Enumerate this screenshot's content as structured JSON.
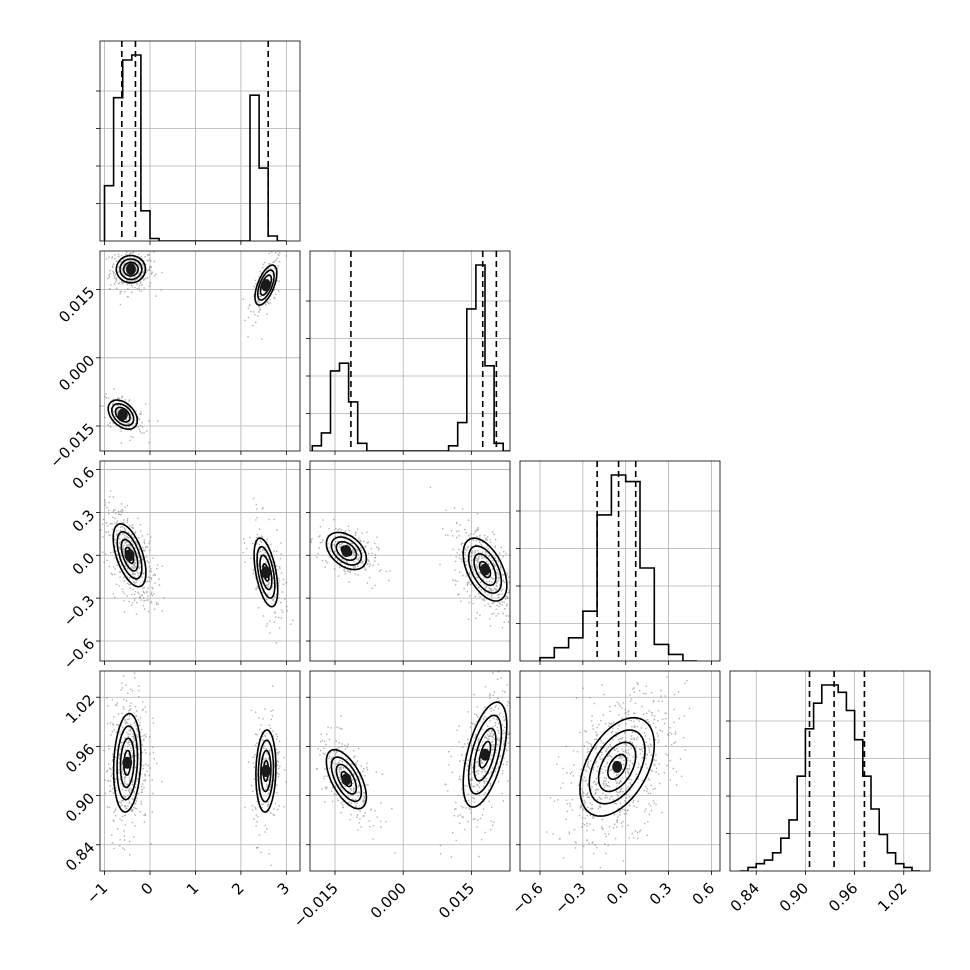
{
  "chart_data": {
    "type": "corner",
    "title": "",
    "parameters": [
      {
        "label": "",
        "range": [
          -1.1,
          3.3
        ],
        "ticks": [
          -1,
          0,
          1,
          2,
          3
        ],
        "tick_labels": [
          "−1",
          "0",
          "1",
          "2",
          "3"
        ],
        "quantiles": [
          -0.62,
          -0.32,
          2.6
        ],
        "histogram": {
          "bin_edges": [
            -1.0,
            -0.8,
            -0.6,
            -0.4,
            -0.2,
            0.0,
            0.2,
            2.2,
            2.4,
            2.6,
            2.8,
            3.0
          ],
          "counts": [
            0.22,
            0.57,
            0.72,
            0.74,
            0.12,
            0.01,
            0.0,
            0.58,
            0.29,
            0.02,
            0.0
          ]
        }
      },
      {
        "label": "",
        "range": [
          -0.0205,
          0.0235
        ],
        "ticks": [
          -0.015,
          0.0,
          0.015
        ],
        "tick_labels": [
          "−0.015",
          "0.000",
          "0.015"
        ],
        "quantiles": [
          -0.0115,
          0.0175,
          0.0205
        ],
        "histogram": {
          "bin_edges": [
            -0.02,
            -0.018,
            -0.016,
            -0.014,
            -0.012,
            -0.01,
            -0.008,
            -0.006,
            0.01,
            0.012,
            0.014,
            0.016,
            0.018,
            0.02,
            0.022,
            0.024
          ],
          "counts": [
            0.02,
            0.07,
            0.31,
            0.34,
            0.19,
            0.03,
            0.0,
            0.0,
            0.02,
            0.11,
            0.55,
            0.72,
            0.33,
            0.03,
            0.0
          ]
        }
      },
      {
        "label": "",
        "range": [
          -0.74,
          0.66
        ],
        "ticks": [
          -0.6,
          -0.3,
          0.0,
          0.3,
          0.6
        ],
        "tick_labels": [
          "−0.6",
          "−0.3",
          "0.0",
          "0.3",
          "0.6"
        ],
        "quantiles": [
          -0.2,
          -0.05,
          0.07
        ],
        "histogram": {
          "bin_edges": [
            -0.6,
            -0.5,
            -0.4,
            -0.3,
            -0.2,
            -0.1,
            0.0,
            0.1,
            0.2,
            0.3,
            0.4,
            0.5
          ],
          "counts": [
            0.01,
            0.04,
            0.07,
            0.15,
            0.44,
            0.56,
            0.54,
            0.28,
            0.05,
            0.02,
            0.0
          ]
        }
      },
      {
        "label": "",
        "range": [
          0.808,
          1.052
        ],
        "ticks": [
          0.84,
          0.9,
          0.96,
          1.02
        ],
        "tick_labels": [
          "0.84",
          "0.90",
          "0.96",
          "1.02"
        ],
        "quantiles": [
          0.905,
          0.935,
          0.972
        ],
        "histogram": {
          "bin_edges": [
            0.82,
            0.83,
            0.84,
            0.85,
            0.86,
            0.87,
            0.88,
            0.89,
            0.9,
            0.91,
            0.92,
            0.93,
            0.94,
            0.95,
            0.96,
            0.97,
            0.98,
            0.99,
            1.0,
            1.01,
            1.02,
            1.03,
            1.04
          ],
          "counts": [
            0.0,
            0.01,
            0.02,
            0.03,
            0.05,
            0.09,
            0.14,
            0.26,
            0.39,
            0.46,
            0.51,
            0.51,
            0.49,
            0.44,
            0.36,
            0.26,
            0.17,
            0.1,
            0.05,
            0.02,
            0.01,
            0.0
          ]
        }
      }
    ],
    "joint_modes": {
      "1_0": [
        {
          "x": -0.42,
          "y": 0.0195,
          "sx": 0.16,
          "sy": 0.0015,
          "rho": 0.0,
          "weight": 0.5
        },
        {
          "x": 2.55,
          "y": 0.016,
          "sx": 0.12,
          "sy": 0.0022,
          "rho": 0.6,
          "weight": 0.25
        },
        {
          "x": -0.6,
          "y": -0.0125,
          "sx": 0.16,
          "sy": 0.0016,
          "rho": -0.4,
          "weight": 0.25
        }
      ],
      "2_0": [
        {
          "x": -0.45,
          "y": 0.0,
          "sx": 0.18,
          "sy": 0.11,
          "rho": -0.55,
          "weight": 0.7
        },
        {
          "x": 2.55,
          "y": -0.12,
          "sx": 0.13,
          "sy": 0.12,
          "rho": -0.5,
          "weight": 0.3
        }
      ],
      "2_1": [
        {
          "x": -0.0125,
          "y": 0.03,
          "sx": 0.0022,
          "sy": 0.065,
          "rho": -0.4,
          "weight": 0.35
        },
        {
          "x": 0.018,
          "y": -0.1,
          "sx": 0.0024,
          "sy": 0.11,
          "rho": -0.5,
          "weight": 0.65
        }
      ],
      "3_0": [
        {
          "x": -0.5,
          "y": 0.94,
          "sx": 0.15,
          "sy": 0.03,
          "rho": 0.15,
          "weight": 0.7
        },
        {
          "x": 2.55,
          "y": 0.93,
          "sx": 0.11,
          "sy": 0.025,
          "rho": 0.1,
          "weight": 0.3
        }
      ],
      "3_1": [
        {
          "x": -0.0125,
          "y": 0.92,
          "sx": 0.0022,
          "sy": 0.018,
          "rho": -0.6,
          "weight": 0.4
        },
        {
          "x": 0.018,
          "y": 0.95,
          "sx": 0.0024,
          "sy": 0.032,
          "rho": 0.55,
          "weight": 0.6
        }
      ],
      "3_2": [
        {
          "x": -0.06,
          "y": 0.935,
          "sx": 0.13,
          "sy": 0.03,
          "rho": 0.45,
          "weight": 1.0
        }
      ]
    },
    "contour_levels": [
      0.118,
      0.393,
      0.675,
      0.865
    ],
    "grid": true,
    "legend": "none"
  }
}
